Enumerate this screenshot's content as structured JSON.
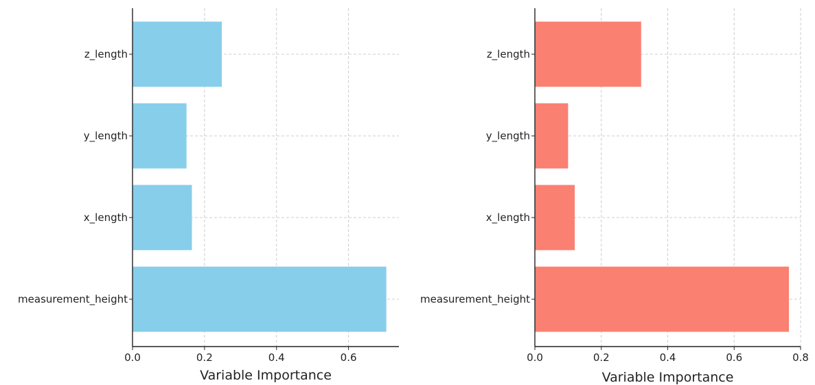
{
  "chart_data": [
    {
      "type": "bar",
      "orientation": "horizontal",
      "categories": [
        "measurement_height",
        "x_length",
        "y_length",
        "z_length"
      ],
      "values": [
        0.705,
        0.165,
        0.15,
        0.248
      ],
      "xlabel": "Variable Importance",
      "ylabel": "",
      "xlim": [
        0,
        0.74
      ],
      "xticks": [
        "0.0",
        "0.2",
        "0.4",
        "0.6"
      ],
      "grid": true,
      "color": "#87CEEB"
    },
    {
      "type": "bar",
      "orientation": "horizontal",
      "categories": [
        "measurement_height",
        "x_length",
        "y_length",
        "z_length"
      ],
      "values": [
        0.765,
        0.12,
        0.1,
        0.32
      ],
      "xlabel": "Variable Importance",
      "ylabel": "",
      "xlim": [
        0,
        0.8
      ],
      "xticks": [
        "0.0",
        "0.2",
        "0.4",
        "0.6",
        "0.8"
      ],
      "grid": true,
      "color": "#FA8072"
    }
  ]
}
